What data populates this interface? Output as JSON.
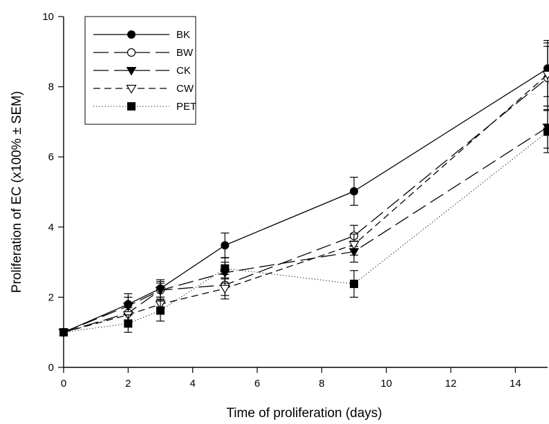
{
  "chart_data": {
    "type": "line",
    "xlabel": "Time of proliferation (days)",
    "ylabel": "Proliferation of EC (x100% ± SEM)",
    "xlim": [
      0,
      15
    ],
    "ylim": [
      0,
      10
    ],
    "x_ticks": [
      0,
      2,
      4,
      6,
      8,
      10,
      12,
      14
    ],
    "y_ticks": [
      0,
      2,
      4,
      6,
      8,
      10
    ],
    "grid": false,
    "legend_position": "top-left",
    "x": [
      0,
      2,
      3,
      5,
      9,
      15
    ],
    "series": [
      {
        "name": "BK",
        "marker": "filled-circle",
        "line": "solid",
        "values": [
          1.0,
          1.8,
          2.25,
          3.48,
          5.02,
          8.52
        ],
        "errors": [
          0,
          0.3,
          0.25,
          0.35,
          0.4,
          0.8
        ]
      },
      {
        "name": "BW",
        "marker": "open-circle",
        "line": "long-dash",
        "values": [
          1.0,
          1.55,
          2.2,
          2.35,
          3.75,
          8.25
        ],
        "errors": [
          0,
          0.2,
          0.2,
          0.3,
          0.3,
          0.9
        ]
      },
      {
        "name": "CK",
        "marker": "filled-triangle",
        "line": "long-dash",
        "values": [
          1.0,
          1.75,
          2.2,
          2.7,
          3.3,
          6.85
        ],
        "errors": [
          0,
          0.25,
          0.25,
          0.3,
          0.3,
          0.6
        ]
      },
      {
        "name": "CW",
        "marker": "open-triangle",
        "line": "short-dash",
        "values": [
          1.0,
          1.5,
          1.8,
          2.25,
          3.5,
          8.35
        ],
        "errors": [
          0,
          0.2,
          0.2,
          0.3,
          0.3,
          0.9
        ]
      },
      {
        "name": "PET",
        "marker": "filled-square",
        "line": "dotted",
        "values": [
          1.0,
          1.25,
          1.62,
          2.82,
          2.38,
          6.72
        ],
        "errors": [
          0,
          0.25,
          0.3,
          0.3,
          0.38,
          0.6
        ]
      }
    ]
  }
}
